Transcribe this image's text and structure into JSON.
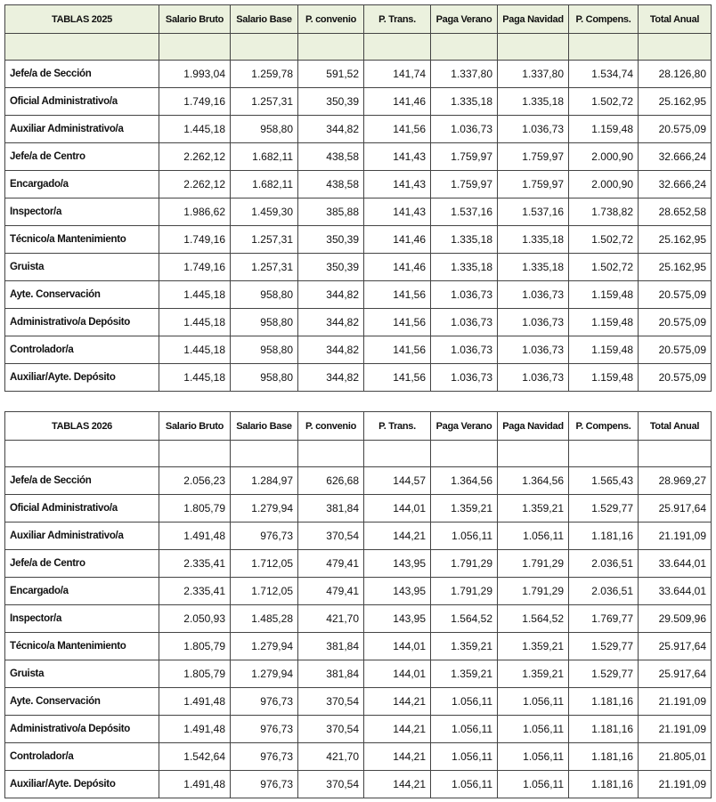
{
  "tables": [
    {
      "headers": [
        "TABLAS 2025",
        "Salario Bruto",
        "Salario Base",
        "P. convenio",
        "P. Trans.",
        "Paga Verano",
        "Paga Navidad",
        "P. Compens.",
        "Total Anual"
      ],
      "rows": [
        [
          "Jefe/a de Sección",
          "1.993,04",
          "1.259,78",
          "591,52",
          "141,74",
          "1.337,80",
          "1.337,80",
          "1.534,74",
          "28.126,80"
        ],
        [
          "Oficial Administrativo/a",
          "1.749,16",
          "1.257,31",
          "350,39",
          "141,46",
          "1.335,18",
          "1.335,18",
          "1.502,72",
          "25.162,95"
        ],
        [
          "Auxiliar Administrativo/a",
          "1.445,18",
          "958,80",
          "344,82",
          "141,56",
          "1.036,73",
          "1.036,73",
          "1.159,48",
          "20.575,09"
        ],
        [
          "Jefe/a de Centro",
          "2.262,12",
          "1.682,11",
          "438,58",
          "141,43",
          "1.759,97",
          "1.759,97",
          "2.000,90",
          "32.666,24"
        ],
        [
          "Encargado/a",
          "2.262,12",
          "1.682,11",
          "438,58",
          "141,43",
          "1.759,97",
          "1.759,97",
          "2.000,90",
          "32.666,24"
        ],
        [
          "Inspector/a",
          "1.986,62",
          "1.459,30",
          "385,88",
          "141,43",
          "1.537,16",
          "1.537,16",
          "1.738,82",
          "28.652,58"
        ],
        [
          "Técnico/a Mantenimiento",
          "1.749,16",
          "1.257,31",
          "350,39",
          "141,46",
          "1.335,18",
          "1.335,18",
          "1.502,72",
          "25.162,95"
        ],
        [
          "Gruista",
          "1.749,16",
          "1.257,31",
          "350,39",
          "141,46",
          "1.335,18",
          "1.335,18",
          "1.502,72",
          "25.162,95"
        ],
        [
          "Ayte. Conservación",
          "1.445,18",
          "958,80",
          "344,82",
          "141,56",
          "1.036,73",
          "1.036,73",
          "1.159,48",
          "20.575,09"
        ],
        [
          "Administrativo/a Depósito",
          "1.445,18",
          "958,80",
          "344,82",
          "141,56",
          "1.036,73",
          "1.036,73",
          "1.159,48",
          "20.575,09"
        ],
        [
          "Controlador/a",
          "1.445,18",
          "958,80",
          "344,82",
          "141,56",
          "1.036,73",
          "1.036,73",
          "1.159,48",
          "20.575,09"
        ],
        [
          "Auxiliar/Ayte. Depósito",
          "1.445,18",
          "958,80",
          "344,82",
          "141,56",
          "1.036,73",
          "1.036,73",
          "1.159,48",
          "20.575,09"
        ]
      ]
    },
    {
      "headers": [
        "TABLAS 2026",
        "Salario Bruto",
        "Salario Base",
        "P. convenio",
        "P. Trans.",
        "Paga Verano",
        "Paga Navidad",
        "P. Compens.",
        "Total Anual"
      ],
      "rows": [
        [
          "Jefe/a de Sección",
          "2.056,23",
          "1.284,97",
          "626,68",
          "144,57",
          "1.364,56",
          "1.364,56",
          "1.565,43",
          "28.969,27"
        ],
        [
          "Oficial Administrativo/a",
          "1.805,79",
          "1.279,94",
          "381,84",
          "144,01",
          "1.359,21",
          "1.359,21",
          "1.529,77",
          "25.917,64"
        ],
        [
          "Auxiliar Administrativo/a",
          "1.491,48",
          "976,73",
          "370,54",
          "144,21",
          "1.056,11",
          "1.056,11",
          "1.181,16",
          "21.191,09"
        ],
        [
          "Jefe/a de Centro",
          "2.335,41",
          "1.712,05",
          "479,41",
          "143,95",
          "1.791,29",
          "1.791,29",
          "2.036,51",
          "33.644,01"
        ],
        [
          "Encargado/a",
          "2.335,41",
          "1.712,05",
          "479,41",
          "143,95",
          "1.791,29",
          "1.791,29",
          "2.036,51",
          "33.644,01"
        ],
        [
          "Inspector/a",
          "2.050,93",
          "1.485,28",
          "421,70",
          "143,95",
          "1.564,52",
          "1.564,52",
          "1.769,77",
          "29.509,96"
        ],
        [
          "Técnico/a Mantenimiento",
          "1.805,79",
          "1.279,94",
          "381,84",
          "144,01",
          "1.359,21",
          "1.359,21",
          "1.529,77",
          "25.917,64"
        ],
        [
          "Gruista",
          "1.805,79",
          "1.279,94",
          "381,84",
          "144,01",
          "1.359,21",
          "1.359,21",
          "1.529,77",
          "25.917,64"
        ],
        [
          "Ayte. Conservación",
          "1.491,48",
          "976,73",
          "370,54",
          "144,21",
          "1.056,11",
          "1.056,11",
          "1.181,16",
          "21.191,09"
        ],
        [
          "Administrativo/a Depósito",
          "1.491,48",
          "976,73",
          "370,54",
          "144,21",
          "1.056,11",
          "1.056,11",
          "1.181,16",
          "21.191,09"
        ],
        [
          "Controlador/a",
          "1.542,64",
          "976,73",
          "421,70",
          "144,21",
          "1.056,11",
          "1.056,11",
          "1.181,16",
          "21.805,01"
        ],
        [
          "Auxiliar/Ayte. Depósito",
          "1.491,48",
          "976,73",
          "370,54",
          "144,21",
          "1.056,11",
          "1.056,11",
          "1.181,16",
          "21.191,09"
        ]
      ]
    }
  ]
}
